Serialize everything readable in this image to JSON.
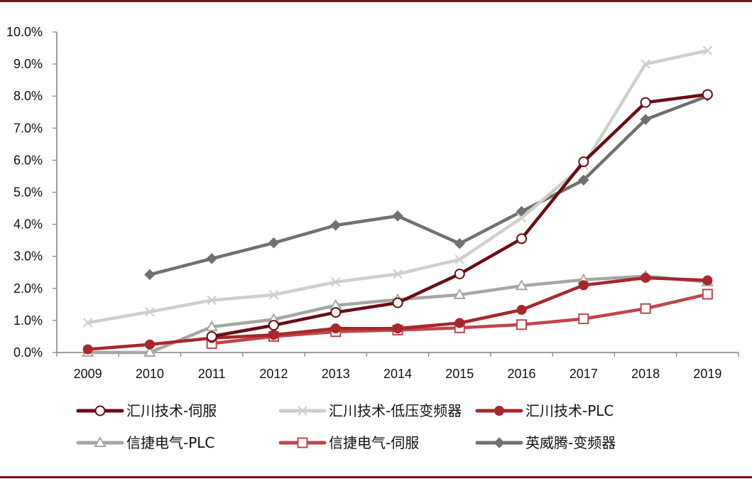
{
  "chart_data": {
    "type": "line",
    "x": [
      "2009",
      "2010",
      "2011",
      "2012",
      "2013",
      "2014",
      "2015",
      "2016",
      "2017",
      "2018",
      "2019"
    ],
    "ylim": [
      0,
      10
    ],
    "y_ticks": [
      "0.0%",
      "1.0%",
      "2.0%",
      "3.0%",
      "4.0%",
      "5.0%",
      "6.0%",
      "7.0%",
      "8.0%",
      "9.0%",
      "10.0%"
    ],
    "grid": false,
    "legend_position": "bottom",
    "series": [
      {
        "name": "汇川技术-伺服",
        "color": "#6b0c12",
        "marker": "circle-open",
        "values": [
          null,
          null,
          0.5,
          0.85,
          1.25,
          1.55,
          2.45,
          3.55,
          5.95,
          7.8,
          8.05
        ]
      },
      {
        "name": "汇川技术-低压变频器",
        "color": "#cfcfca",
        "marker": "x",
        "values": [
          0.93,
          1.27,
          1.63,
          1.8,
          2.2,
          2.45,
          2.9,
          4.2,
          5.85,
          9.0,
          9.42
        ]
      },
      {
        "name": "汇川技术-PLC",
        "color": "#a8272d",
        "marker": "circle-filled",
        "values": [
          0.1,
          0.25,
          0.45,
          0.55,
          0.75,
          0.75,
          0.92,
          1.33,
          2.1,
          2.33,
          2.25
        ]
      },
      {
        "name": "信捷电气-PLC",
        "color": "#a6a6a2",
        "marker": "triangle-open",
        "values": [
          0.0,
          0.0,
          0.8,
          1.03,
          1.47,
          1.65,
          1.8,
          2.08,
          2.27,
          2.38,
          2.2
        ]
      },
      {
        "name": "信捷电气-伺服",
        "color": "#c0454a",
        "marker": "square-open",
        "values": [
          null,
          null,
          0.28,
          0.5,
          0.65,
          0.7,
          0.77,
          0.87,
          1.05,
          1.37,
          1.82
        ]
      },
      {
        "name": "英威腾-变频器",
        "color": "#6f716d",
        "marker": "diamond-filled",
        "values": [
          null,
          2.43,
          2.93,
          3.42,
          3.97,
          4.26,
          3.4,
          4.4,
          5.38,
          7.27,
          8.0
        ]
      }
    ]
  },
  "colors": {
    "frame": "#7a0f16",
    "axis": "#7f7f7f"
  }
}
